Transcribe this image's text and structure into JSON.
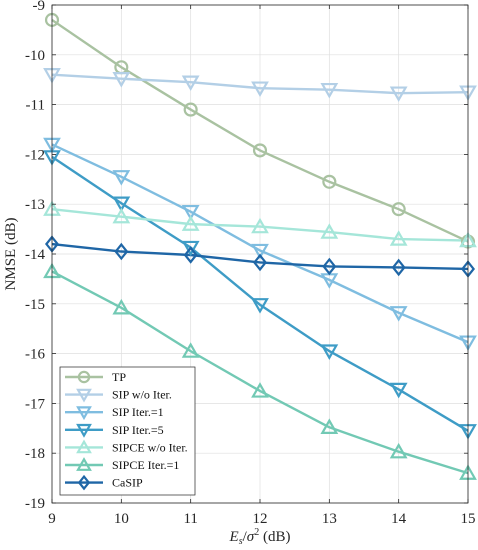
{
  "chart_data": {
    "type": "line",
    "title": "",
    "xlabel_parts": {
      "var": "E",
      "sub": "s",
      "sym": "σ",
      "sup": "2",
      "unit": " (dB)"
    },
    "ylabel": "NMSE (dB)",
    "x": [
      9,
      10,
      11,
      12,
      13,
      14,
      15
    ],
    "xlim": [
      9,
      15
    ],
    "ylim": [
      -19,
      -9
    ],
    "xticks": [
      "9",
      "10",
      "11",
      "12",
      "13",
      "14",
      "15"
    ],
    "yticks": [
      "-9",
      "-10",
      "-11",
      "-12",
      "-13",
      "-14",
      "-15",
      "-16",
      "-17",
      "-18",
      "-19"
    ],
    "grid": true,
    "legend_position": "bottom-left",
    "series": [
      {
        "name": "TP",
        "marker": "circle",
        "color": "#a9c2a1",
        "values": [
          -9.3,
          -10.25,
          -11.1,
          -11.92,
          -12.55,
          -13.1,
          -13.75
        ]
      },
      {
        "name": "SIP w/o Iter.",
        "marker": "triangle-down",
        "color": "#b3cfe6",
        "values": [
          -10.4,
          -10.48,
          -10.55,
          -10.67,
          -10.7,
          -10.77,
          -10.75
        ]
      },
      {
        "name": "SIP Iter.=1",
        "marker": "triangle-down",
        "color": "#7fbde0",
        "values": [
          -11.8,
          -12.45,
          -13.15,
          -13.93,
          -14.52,
          -15.18,
          -15.77
        ]
      },
      {
        "name": "SIP Iter.=5",
        "marker": "triangle-down",
        "color": "#3e9cc6",
        "values": [
          -12.05,
          -12.98,
          -13.87,
          -15.02,
          -15.95,
          -16.72,
          -17.55
        ]
      },
      {
        "name": "SIPCE w/o Iter.",
        "marker": "triangle-up",
        "color": "#a5e6d9",
        "values": [
          -13.1,
          -13.25,
          -13.4,
          -13.45,
          -13.56,
          -13.7,
          -13.73
        ]
      },
      {
        "name": "SIPCE Iter.=1",
        "marker": "triangle-up",
        "color": "#72c9b4",
        "values": [
          -14.35,
          -15.08,
          -15.95,
          -16.75,
          -17.48,
          -17.97,
          -18.4
        ]
      },
      {
        "name": "CaSIP",
        "marker": "diamond",
        "color": "#1f66a6",
        "values": [
          -13.8,
          -13.95,
          -14.02,
          -14.17,
          -14.25,
          -14.27,
          -14.3
        ]
      }
    ]
  }
}
